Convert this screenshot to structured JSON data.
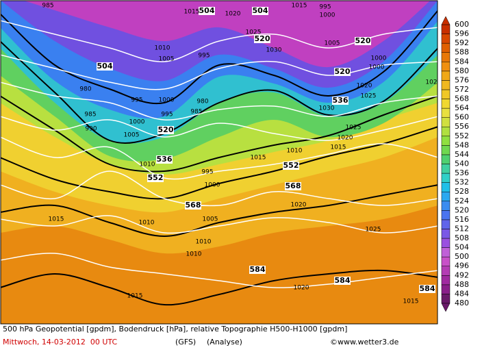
{
  "map": {
    "contour_labels_black": [
      504,
      504,
      504,
      520,
      520,
      520,
      520,
      536,
      536,
      552,
      552,
      568,
      568,
      584,
      584,
      584
    ],
    "contour_labels_white": [
      985,
      1015,
      1020,
      1015,
      995,
      1000,
      1025,
      1030,
      1005,
      1000,
      1010,
      1005,
      995,
      1000,
      1020,
      1025,
      980,
      995,
      1000,
      995,
      985,
      980,
      985,
      990,
      1000,
      1005,
      1030,
      1025,
      1020,
      1015,
      1010,
      1015,
      995,
      1000,
      1010,
      1020,
      1015,
      1010,
      1005,
      1010,
      1010,
      1025,
      1015,
      1020,
      1015,
      102
    ]
  },
  "scale": {
    "ticks": [
      480,
      484,
      488,
      492,
      496,
      500,
      504,
      508,
      512,
      516,
      520,
      524,
      528,
      532,
      536,
      540,
      544,
      548,
      552,
      556,
      560,
      564,
      568,
      572,
      576,
      580,
      584,
      588,
      592,
      596,
      600
    ],
    "colors": [
      "#6a1a6a",
      "#8a1f8a",
      "#a02aa0",
      "#b43cb4",
      "#c850c8",
      "#c060d8",
      "#9a50e0",
      "#7a58e6",
      "#6064ea",
      "#4a74f0",
      "#3a8cf0",
      "#2aa8f0",
      "#20c0e8",
      "#30d0c8",
      "#40d0a0",
      "#50d070",
      "#70d850",
      "#90e040",
      "#b0e040",
      "#d0e040",
      "#e8e040",
      "#f0d830",
      "#f0c828",
      "#f0b820",
      "#f0a818",
      "#f09010",
      "#e87808",
      "#e06000",
      "#d84800",
      "#c83000"
    ]
  },
  "caption": {
    "title": "500 hPa Geopotential [gpdm], Bodendruck [hPa], relative Topographie H500-H1000 [gpdm]",
    "date": "Mittwoch, 14-03-2012  00 UTC",
    "model": "(GFS)",
    "analysis": "(Analyse)",
    "source": "©www.wetter3.de"
  }
}
